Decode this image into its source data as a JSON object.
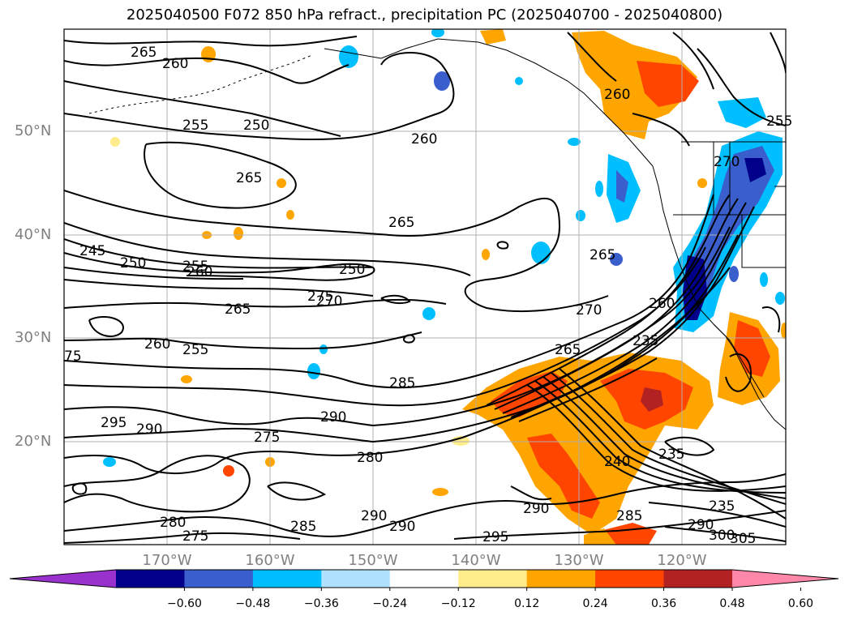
{
  "title": "2025040500 F072 850 hPa refract., precipitation PC (2025040700 - 2025040800)",
  "latitude_labels": [
    "50°N",
    "40°N",
    "30°N",
    "20°N"
  ],
  "longitude_labels": [
    "170°W",
    "160°W",
    "150°W",
    "140°W",
    "130°W",
    "120°W"
  ],
  "colorbar": {
    "tick_labels": [
      "−0.60",
      "−0.48",
      "−0.36",
      "−0.24",
      "−0.12",
      "0.12",
      "0.24",
      "0.36",
      "0.48",
      "0.60"
    ],
    "colors": [
      "#9932cc",
      "#00008b",
      "#3a5fcd",
      "#00bfff",
      "#b0e2ff",
      "#ffffff",
      "#ffec8b",
      "#ffa500",
      "#ff4500",
      "#b22222",
      "#ff88aa"
    ]
  },
  "contour_labels": [
    "265",
    "260",
    "255",
    "250",
    "260",
    "265",
    "265",
    "260",
    "270",
    "255",
    "245",
    "250",
    "255",
    "260",
    "250",
    "265",
    "275",
    "270",
    "265",
    "270",
    "260",
    "235",
    "260",
    "255",
    "285",
    "265",
    "295",
    "290",
    "290",
    "275",
    "280",
    "240",
    "235",
    "285",
    "290",
    "290",
    "295",
    "290",
    "280",
    "275",
    "285",
    "290",
    "300",
    "305",
    "235",
    "75"
  ]
}
